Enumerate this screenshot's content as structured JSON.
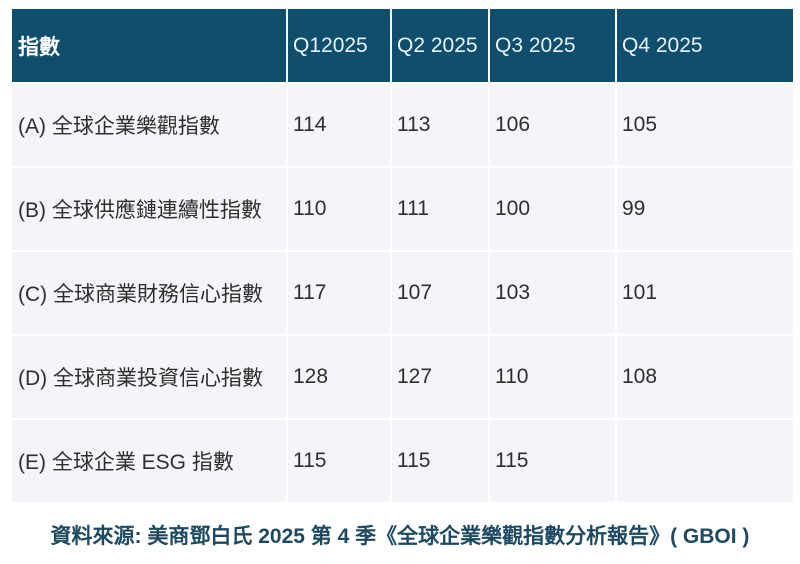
{
  "chart_data": {
    "type": "table",
    "columns": [
      "指數",
      "Q12025",
      "Q2 2025",
      "Q3 2025",
      "Q4 2025"
    ],
    "rows": [
      {
        "label": "(A) 全球企業樂觀指數",
        "values": [
          "114",
          "113",
          "106",
          "105"
        ]
      },
      {
        "label": "(B) 全球供應鏈連續性指數",
        "values": [
          "110",
          "111",
          "100",
          "99"
        ]
      },
      {
        "label": "(C) 全球商業財務信心指數",
        "values": [
          "117",
          "107",
          "103",
          "101"
        ]
      },
      {
        "label": "(D) 全球商業投資信心指數",
        "values": [
          "128",
          "127",
          "110",
          "108"
        ]
      },
      {
        "label": "(E) 全球企業 ESG 指數",
        "values": [
          "115",
          "115",
          "115",
          ""
        ]
      }
    ],
    "source": "資料來源: 美商鄧白氏 2025 第 4 季《全球企業樂觀指數分析報告》( GBOI )",
    "layout": {
      "grid": "white 2px separators",
      "legend": "none",
      "header_position": "top row"
    }
  },
  "colors": {
    "header_bg": "#0f4e6c",
    "header_text": "#ffffff",
    "row_bg": "#f4f5f8",
    "separator": "#ffffff",
    "body_text": "#2e2e2e",
    "source_text": "#1d4a61"
  }
}
